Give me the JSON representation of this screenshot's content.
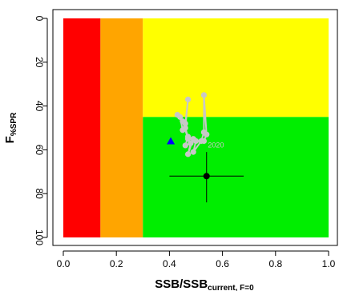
{
  "chart_data": {
    "type": "scatter",
    "title": "",
    "xlabel": {
      "main": "SSB/SSB",
      "subscript": "current, F=0"
    },
    "ylabel": {
      "main": "F",
      "subscript": "%SPR"
    },
    "xlim": [
      0,
      1
    ],
    "ylim": [
      0,
      100
    ],
    "y_reversed": true,
    "xticks": [
      0.0,
      0.2,
      0.4,
      0.6,
      0.8,
      1.0
    ],
    "xtick_labels": [
      "0.0",
      "0.2",
      "0.4",
      "0.6",
      "0.8",
      "1.0"
    ],
    "yticks": [
      0,
      20,
      40,
      60,
      80,
      100
    ],
    "ytick_labels": [
      "0",
      "20",
      "40",
      "60",
      "80",
      "100"
    ],
    "ytick_label_rotation": 90,
    "grid": false,
    "zones": [
      {
        "x0": 0.0,
        "x1": 0.14,
        "y0": 0,
        "y1": 100,
        "color": "#ff0000"
      },
      {
        "x0": 0.14,
        "x1": 0.3,
        "y0": 0,
        "y1": 100,
        "color": "#ffa500"
      },
      {
        "x0": 0.3,
        "x1": 1.0,
        "y0": 0,
        "y1": 45,
        "color": "#ffff00"
      },
      {
        "x0": 0.3,
        "x1": 1.0,
        "y0": 45,
        "y1": 100,
        "color": "#00ee00"
      }
    ],
    "trajectory": {
      "color": "#c8c8c8",
      "points": [
        [
          0.47,
          55
        ],
        [
          0.45,
          47
        ],
        [
          0.43,
          44
        ],
        [
          0.44,
          45
        ],
        [
          0.45,
          51
        ],
        [
          0.46,
          48
        ],
        [
          0.47,
          37
        ],
        [
          0.46,
          50
        ],
        [
          0.47,
          54
        ],
        [
          0.46,
          58
        ],
        [
          0.48,
          57
        ],
        [
          0.47,
          62
        ],
        [
          0.49,
          55
        ],
        [
          0.5,
          56
        ],
        [
          0.49,
          61
        ],
        [
          0.52,
          56
        ],
        [
          0.53,
          52
        ],
        [
          0.53,
          35
        ],
        [
          0.54,
          53
        ],
        [
          0.53,
          56
        ]
      ]
    },
    "endpoint_label": "2020",
    "first_point": {
      "x": 0.405,
      "y": 56,
      "marker": "triangle",
      "color": "#0000ff"
    },
    "estimate": {
      "x": 0.54,
      "y": 72,
      "x_range": [
        0.4,
        0.68
      ],
      "y_range": [
        61,
        84
      ],
      "color": "#000000"
    },
    "colors": {
      "red": "#ff0000",
      "orange": "#ffa500",
      "yellow": "#ffff00",
      "green": "#00ee00",
      "trajectory": "#c8c8c8",
      "triangle": "#0000ff"
    }
  }
}
